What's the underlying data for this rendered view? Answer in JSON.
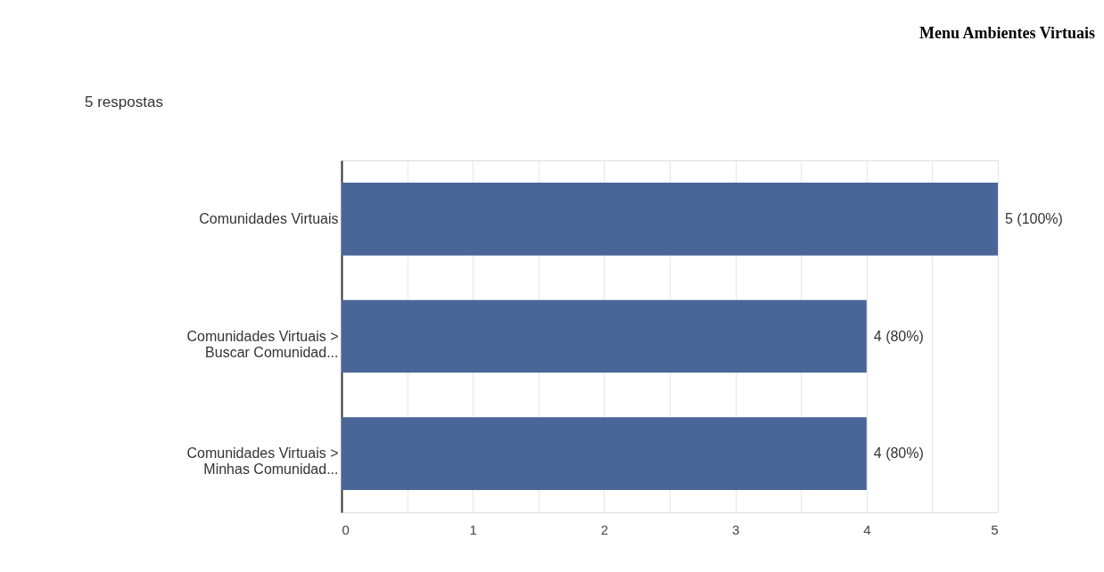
{
  "chart_data": {
    "type": "bar",
    "orientation": "horizontal",
    "title": "Menu Ambientes Virtuais",
    "subtitle": "5 respostas",
    "categories": [
      "Comunidades Virtuais",
      "Comunidades Virtuais > Buscar Comunidad...",
      "Comunidades Virtuais > Minhas Comunidad..."
    ],
    "values": [
      5,
      4,
      4
    ],
    "color": "#4a6698",
    "value_labels": [
      "5 (100%)",
      "4 (80%)",
      "4 (80%)"
    ],
    "xlim": [
      0,
      5
    ],
    "xticks": [
      0,
      {
        "value": 0.5,
        "label": null
      },
      1,
      {
        "value": 1.5,
        "label": null
      },
      2,
      {
        "value": 2.5,
        "label": null
      },
      3,
      {
        "value": 3.5,
        "label": null
      },
      4,
      {
        "value": 4.5,
        "label": null
      },
      5
    ],
    "grid": "x"
  }
}
